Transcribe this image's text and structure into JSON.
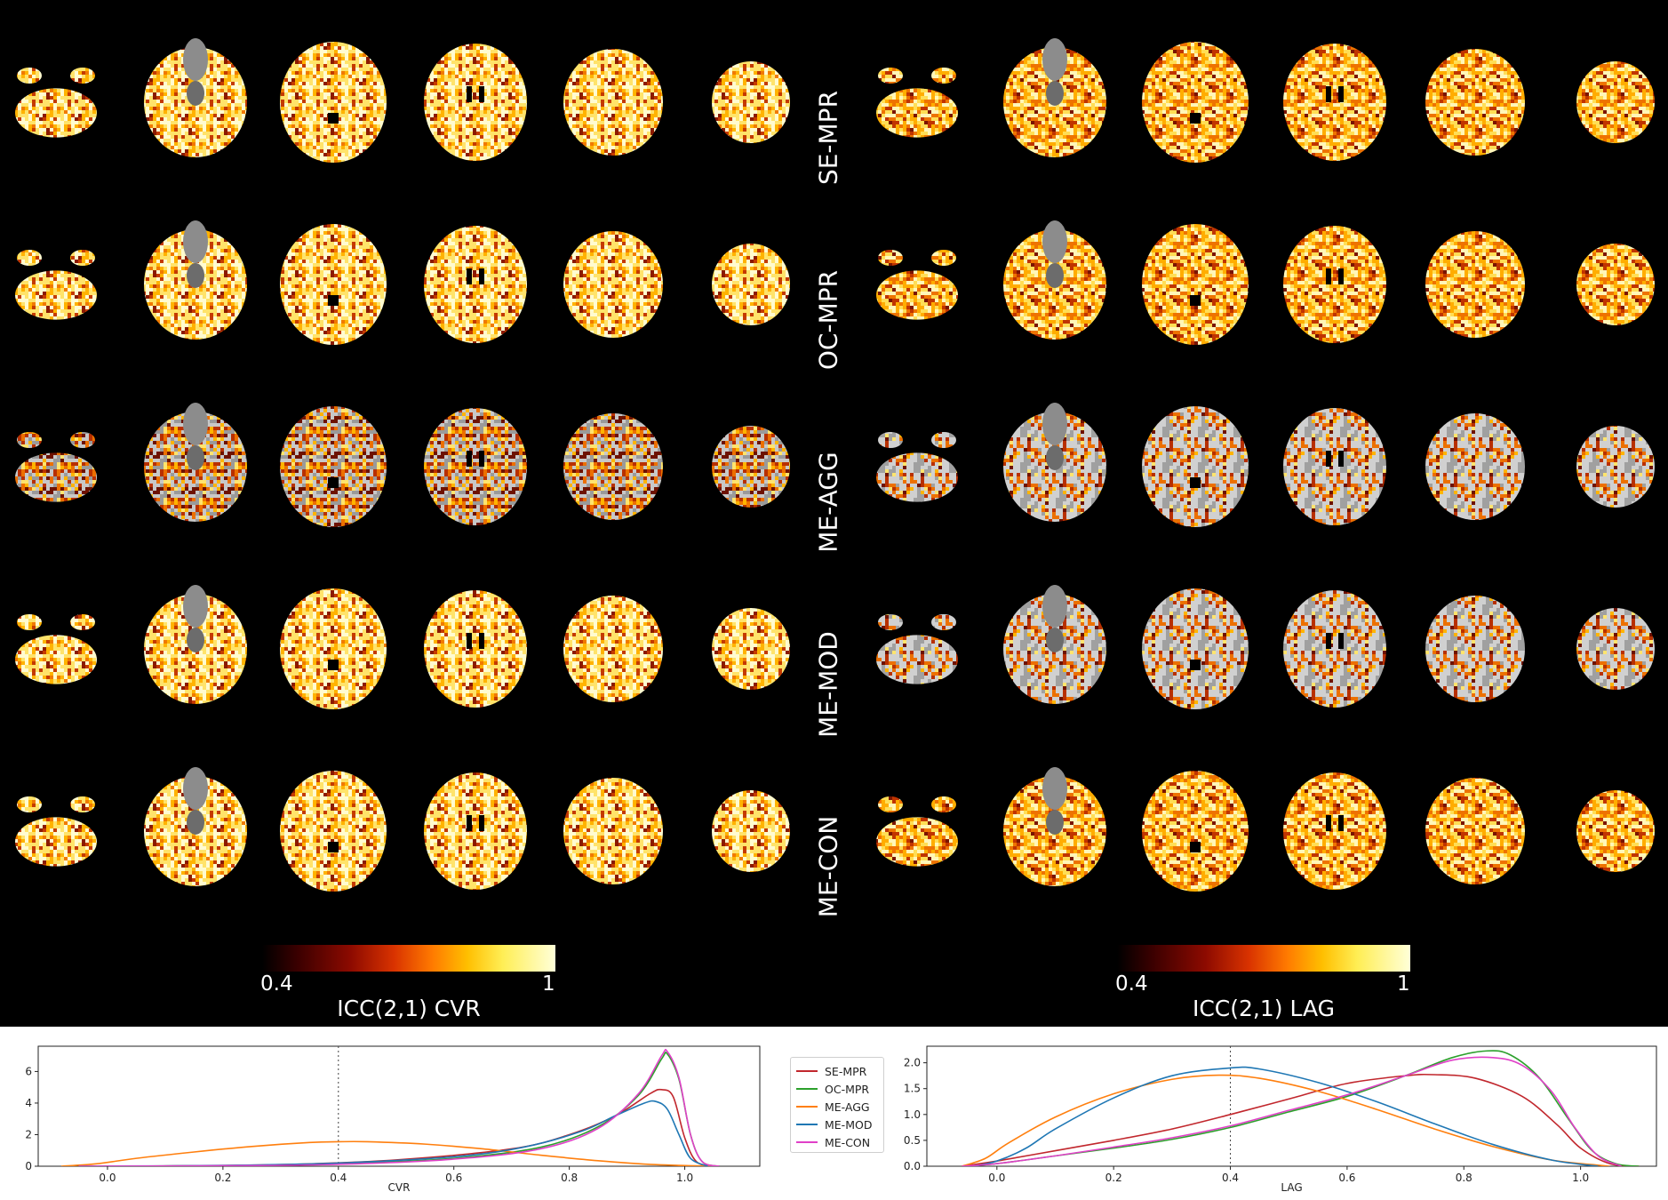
{
  "rows": [
    "SE-MPR",
    "OC-MPR",
    "ME-AGG",
    "ME-MOD",
    "ME-CON"
  ],
  "colorbars": [
    {
      "min_label": "0.4",
      "max_label": "1",
      "title": "ICC(2,1) CVR"
    },
    {
      "min_label": "0.4",
      "max_label": "1",
      "title": "ICC(2,1) LAG"
    }
  ],
  "legend": [
    {
      "name": "SE-MPR",
      "color": "#c1272d"
    },
    {
      "name": "OC-MPR",
      "color": "#2ca02c"
    },
    {
      "name": "ME-AGG",
      "color": "#ff7f0e"
    },
    {
      "name": "ME-MOD",
      "color": "#1f77b4"
    },
    {
      "name": "ME-CON",
      "color": "#e040c8"
    }
  ],
  "chart_data": [
    {
      "type": "line",
      "xlabel": "CVR",
      "ylabel": "",
      "xlim": [
        -0.12,
        1.13
      ],
      "ylim": [
        0,
        7.6
      ],
      "xticks": [
        0.0,
        0.2,
        0.4,
        0.6,
        0.8,
        1.0
      ],
      "xtick_labels": [
        "0.0",
        "0.2",
        "0.4",
        "0.6",
        "0.8",
        "1.0"
      ],
      "yticks": [
        0,
        2,
        4,
        6
      ],
      "ytick_labels": [
        "0",
        "2",
        "4",
        "6"
      ],
      "vline": 0.4,
      "series": [
        {
          "name": "SE-MPR",
          "color": "#c1272d",
          "points": [
            [
              -0.05,
              0
            ],
            [
              0.1,
              0.02
            ],
            [
              0.3,
              0.1
            ],
            [
              0.5,
              0.4
            ],
            [
              0.7,
              1.1
            ],
            [
              0.8,
              2.0
            ],
            [
              0.88,
              3.2
            ],
            [
              0.94,
              4.6
            ],
            [
              0.96,
              4.85
            ],
            [
              0.98,
              4.4
            ],
            [
              1.0,
              1.8
            ],
            [
              1.02,
              0.3
            ],
            [
              1.05,
              0
            ]
          ]
        },
        {
          "name": "OC-MPR",
          "color": "#2ca02c",
          "points": [
            [
              -0.05,
              0
            ],
            [
              0.2,
              0.03
            ],
            [
              0.4,
              0.15
            ],
            [
              0.6,
              0.5
            ],
            [
              0.75,
              1.2
            ],
            [
              0.85,
              2.5
            ],
            [
              0.92,
              4.5
            ],
            [
              0.96,
              6.8
            ],
            [
              0.97,
              7.1
            ],
            [
              0.99,
              5.5
            ],
            [
              1.01,
              2.0
            ],
            [
              1.03,
              0.3
            ],
            [
              1.06,
              0
            ]
          ]
        },
        {
          "name": "ME-AGG",
          "color": "#ff7f0e",
          "points": [
            [
              -0.08,
              0
            ],
            [
              -0.02,
              0.15
            ],
            [
              0.05,
              0.5
            ],
            [
              0.15,
              0.9
            ],
            [
              0.25,
              1.25
            ],
            [
              0.35,
              1.5
            ],
            [
              0.4,
              1.55
            ],
            [
              0.45,
              1.55
            ],
            [
              0.55,
              1.4
            ],
            [
              0.65,
              1.1
            ],
            [
              0.75,
              0.7
            ],
            [
              0.85,
              0.35
            ],
            [
              0.95,
              0.1
            ],
            [
              1.05,
              0
            ]
          ]
        },
        {
          "name": "ME-MOD",
          "color": "#1f77b4",
          "points": [
            [
              -0.05,
              0
            ],
            [
              0.2,
              0.05
            ],
            [
              0.4,
              0.2
            ],
            [
              0.6,
              0.6
            ],
            [
              0.72,
              1.2
            ],
            [
              0.82,
              2.2
            ],
            [
              0.88,
              3.2
            ],
            [
              0.93,
              4.0
            ],
            [
              0.95,
              4.1
            ],
            [
              0.97,
              3.6
            ],
            [
              0.99,
              2.0
            ],
            [
              1.01,
              0.5
            ],
            [
              1.04,
              0
            ]
          ]
        },
        {
          "name": "ME-CON",
          "color": "#e040c8",
          "points": [
            [
              -0.05,
              0
            ],
            [
              0.2,
              0.03
            ],
            [
              0.4,
              0.12
            ],
            [
              0.6,
              0.45
            ],
            [
              0.75,
              1.1
            ],
            [
              0.85,
              2.4
            ],
            [
              0.92,
              4.6
            ],
            [
              0.96,
              7.0
            ],
            [
              0.97,
              7.25
            ],
            [
              0.99,
              5.6
            ],
            [
              1.01,
              2.0
            ],
            [
              1.03,
              0.3
            ],
            [
              1.06,
              0
            ]
          ]
        }
      ]
    },
    {
      "type": "line",
      "xlabel": "LAG",
      "ylabel": "",
      "xlim": [
        -0.12,
        1.13
      ],
      "ylim": [
        0,
        2.32
      ],
      "xticks": [
        0.0,
        0.2,
        0.4,
        0.6,
        0.8,
        1.0
      ],
      "xtick_labels": [
        "0.0",
        "0.2",
        "0.4",
        "0.6",
        "0.8",
        "1.0"
      ],
      "yticks": [
        0.0,
        0.5,
        1.0,
        1.5,
        2.0
      ],
      "ytick_labels": [
        "0.0",
        "0.5",
        "1.0",
        "1.5",
        "2.0"
      ],
      "vline": 0.4,
      "series": [
        {
          "name": "SE-MPR",
          "color": "#c1272d",
          "points": [
            [
              -0.06,
              0
            ],
            [
              0.0,
              0.1
            ],
            [
              0.1,
              0.3
            ],
            [
              0.2,
              0.5
            ],
            [
              0.3,
              0.72
            ],
            [
              0.4,
              1.0
            ],
            [
              0.5,
              1.3
            ],
            [
              0.6,
              1.6
            ],
            [
              0.7,
              1.75
            ],
            [
              0.75,
              1.77
            ],
            [
              0.82,
              1.7
            ],
            [
              0.9,
              1.35
            ],
            [
              0.96,
              0.8
            ],
            [
              1.0,
              0.35
            ],
            [
              1.05,
              0.05
            ],
            [
              1.1,
              0
            ]
          ]
        },
        {
          "name": "OC-MPR",
          "color": "#2ca02c",
          "points": [
            [
              -0.06,
              0
            ],
            [
              0.0,
              0.05
            ],
            [
              0.1,
              0.2
            ],
            [
              0.2,
              0.35
            ],
            [
              0.3,
              0.52
            ],
            [
              0.4,
              0.75
            ],
            [
              0.5,
              1.05
            ],
            [
              0.6,
              1.35
            ],
            [
              0.7,
              1.75
            ],
            [
              0.78,
              2.1
            ],
            [
              0.84,
              2.23
            ],
            [
              0.88,
              2.15
            ],
            [
              0.93,
              1.7
            ],
            [
              0.98,
              0.9
            ],
            [
              1.02,
              0.3
            ],
            [
              1.06,
              0.05
            ],
            [
              1.1,
              0
            ]
          ]
        },
        {
          "name": "ME-AGG",
          "color": "#ff7f0e",
          "points": [
            [
              -0.06,
              0
            ],
            [
              -0.02,
              0.15
            ],
            [
              0.02,
              0.45
            ],
            [
              0.1,
              0.95
            ],
            [
              0.2,
              1.4
            ],
            [
              0.3,
              1.68
            ],
            [
              0.38,
              1.76
            ],
            [
              0.45,
              1.7
            ],
            [
              0.55,
              1.45
            ],
            [
              0.65,
              1.1
            ],
            [
              0.75,
              0.72
            ],
            [
              0.85,
              0.38
            ],
            [
              0.95,
              0.12
            ],
            [
              1.05,
              0
            ]
          ]
        },
        {
          "name": "ME-MOD",
          "color": "#1f77b4",
          "points": [
            [
              -0.04,
              0
            ],
            [
              0.0,
              0.1
            ],
            [
              0.05,
              0.35
            ],
            [
              0.1,
              0.72
            ],
            [
              0.2,
              1.32
            ],
            [
              0.3,
              1.75
            ],
            [
              0.4,
              1.9
            ],
            [
              0.45,
              1.88
            ],
            [
              0.55,
              1.62
            ],
            [
              0.65,
              1.25
            ],
            [
              0.75,
              0.82
            ],
            [
              0.85,
              0.42
            ],
            [
              0.95,
              0.12
            ],
            [
              1.03,
              0
            ]
          ]
        },
        {
          "name": "ME-CON",
          "color": "#e040c8",
          "points": [
            [
              -0.06,
              0
            ],
            [
              0.0,
              0.05
            ],
            [
              0.1,
              0.2
            ],
            [
              0.2,
              0.37
            ],
            [
              0.3,
              0.55
            ],
            [
              0.4,
              0.78
            ],
            [
              0.5,
              1.08
            ],
            [
              0.6,
              1.38
            ],
            [
              0.7,
              1.75
            ],
            [
              0.78,
              2.05
            ],
            [
              0.85,
              2.1
            ],
            [
              0.9,
              1.95
            ],
            [
              0.95,
              1.45
            ],
            [
              0.99,
              0.75
            ],
            [
              1.03,
              0.2
            ],
            [
              1.07,
              0
            ]
          ]
        }
      ]
    }
  ]
}
